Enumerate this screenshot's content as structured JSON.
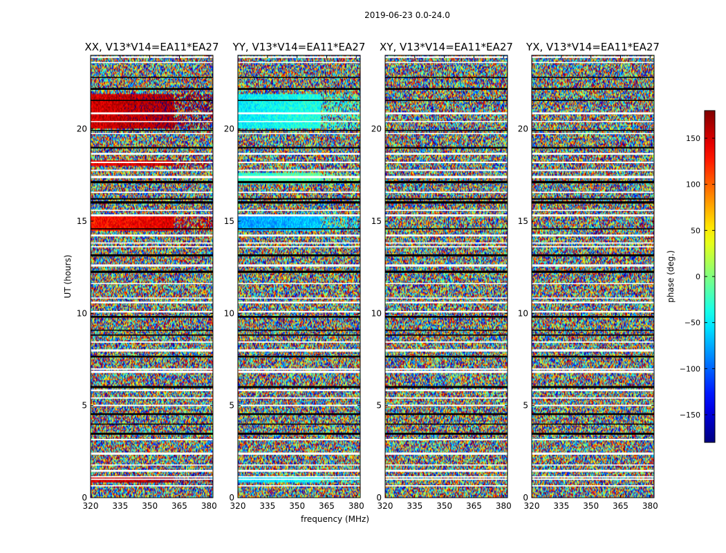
{
  "figure": {
    "suptitle": "2019-06-23 0.0-24.0"
  },
  "chart_data": [
    {
      "type": "heatmap",
      "title": "XX, V13*V14=EA11*EA27",
      "xlabel": "",
      "ylabel": "UT (hours)",
      "xlim": [
        320,
        382
      ],
      "ylim": [
        0,
        24
      ],
      "xticks": [
        320,
        335,
        350,
        365,
        380
      ],
      "yticks": [
        0,
        5,
        10,
        15,
        20
      ],
      "coherent_bands": [
        {
          "from": 0.8,
          "to": 1.1,
          "phase": 150
        },
        {
          "from": 14.5,
          "to": 15.3,
          "phase": 130
        },
        {
          "from": 18.0,
          "to": 18.3,
          "phase": 140
        },
        {
          "from": 20.0,
          "to": 21.9,
          "phase": 150
        }
      ]
    },
    {
      "type": "heatmap",
      "title": "YY, V13*V14=EA11*EA27",
      "xlabel": "frequency (MHz)",
      "ylabel": "",
      "xlim": [
        320,
        382
      ],
      "ylim": [
        0,
        24
      ],
      "xticks": [
        320,
        335,
        350,
        365,
        380
      ],
      "yticks": [
        0,
        5,
        10,
        15,
        20
      ],
      "coherent_bands": [
        {
          "from": 0.8,
          "to": 1.1,
          "phase": -60
        },
        {
          "from": 14.5,
          "to": 15.3,
          "phase": -80
        },
        {
          "from": 17.0,
          "to": 17.6,
          "phase": -30
        },
        {
          "from": 20.0,
          "to": 21.9,
          "phase": -50
        }
      ]
    },
    {
      "type": "heatmap",
      "title": "XY, V13*V14=EA11*EA27",
      "xlabel": "",
      "ylabel": "",
      "xlim": [
        320,
        382
      ],
      "ylim": [
        0,
        24
      ],
      "xticks": [
        320,
        335,
        350,
        365,
        380
      ],
      "yticks": [
        0,
        5,
        10,
        15,
        20
      ],
      "coherent_bands": []
    },
    {
      "type": "heatmap",
      "title": "YX, V13*V14=EA11*EA27",
      "xlabel": "",
      "ylabel": "",
      "xlim": [
        320,
        382
      ],
      "ylim": [
        0,
        24
      ],
      "xticks": [
        320,
        335,
        350,
        365,
        380
      ],
      "yticks": [
        0,
        5,
        10,
        15,
        20
      ],
      "coherent_bands": []
    }
  ],
  "colorbar": {
    "label": "phase (deg.)",
    "range": [
      -180,
      180
    ],
    "ticks": [
      150,
      100,
      50,
      0,
      -50,
      -100,
      -150
    ],
    "tick_labels": [
      "150",
      "100",
      "50",
      "0",
      "−50",
      "−100",
      "−150"
    ],
    "colormap": "jet"
  }
}
